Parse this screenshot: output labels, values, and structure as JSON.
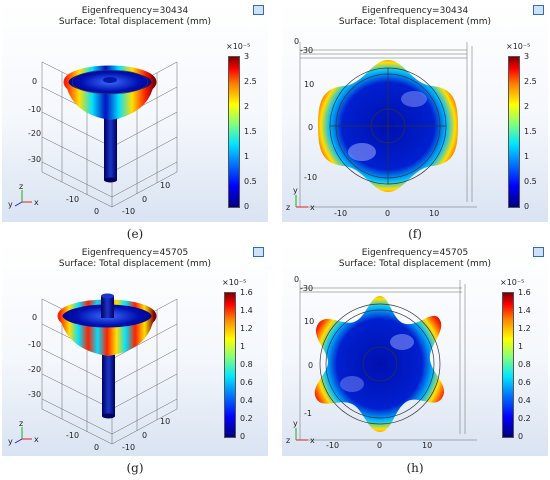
{
  "panels": [
    {
      "id": "e",
      "caption": "(e)",
      "title": "Eigenfrequency=30434",
      "subtitle": "Surface: Total displacement (mm)",
      "exponent": "×10⁻⁵",
      "colorbar_ticks": [
        "3",
        "2.5",
        "2",
        "1.5",
        "1",
        "0.5",
        "0"
      ],
      "axis_labels": [
        "0",
        "-10",
        "-20",
        "-30",
        "10",
        "0",
        "-10",
        "0",
        "-10"
      ],
      "axes": {
        "y": "y",
        "z": "z",
        "x": "x"
      }
    },
    {
      "id": "f",
      "caption": "(f)",
      "title": "Eigenfrequency=30434",
      "subtitle": "Surface: Total displacement (mm)",
      "exponent": "×10⁻⁵",
      "colorbar_ticks": [
        "3",
        "2.5",
        "2",
        "1.5",
        "1",
        "0.5",
        "0"
      ],
      "axis_labels": [
        "0",
        "-30",
        "10",
        "0",
        "-10",
        "-10",
        "0",
        "10"
      ],
      "axes": {
        "y": "y",
        "z": "z",
        "x": "x"
      }
    },
    {
      "id": "g",
      "caption": "(g)",
      "title": "Eigenfrequency=45705",
      "subtitle": "Surface: Total displacement (mm)",
      "exponent": "×10⁻⁵",
      "colorbar_ticks": [
        "1.6",
        "1.4",
        "1.2",
        "1",
        "0.8",
        "0.6",
        "0.4",
        "0.2",
        "0"
      ],
      "axis_labels": [
        "0",
        "-10",
        "-20",
        "-30",
        "10",
        "0",
        "-10",
        "0",
        "-10"
      ],
      "axes": {
        "y": "y",
        "z": "z",
        "x": "x"
      }
    },
    {
      "id": "h",
      "caption": "(h)",
      "title": "Eigenfrequency=45705",
      "subtitle": "Surface: Total displacement (mm)",
      "exponent": "×10⁻⁵",
      "colorbar_ticks": [
        "1.6",
        "1.4",
        "1.2",
        "1",
        "0.8",
        "0.6",
        "0.4",
        "0.2",
        "0"
      ],
      "axis_labels": [
        "0",
        "-30",
        "10",
        "0",
        "-1",
        "-10",
        "0",
        "10"
      ],
      "axes": {
        "y": "y",
        "z": "z",
        "x": "x"
      }
    }
  ],
  "colors": {
    "max": "#7f0000",
    "min": "#00007f",
    "surface": "#0018a8"
  }
}
